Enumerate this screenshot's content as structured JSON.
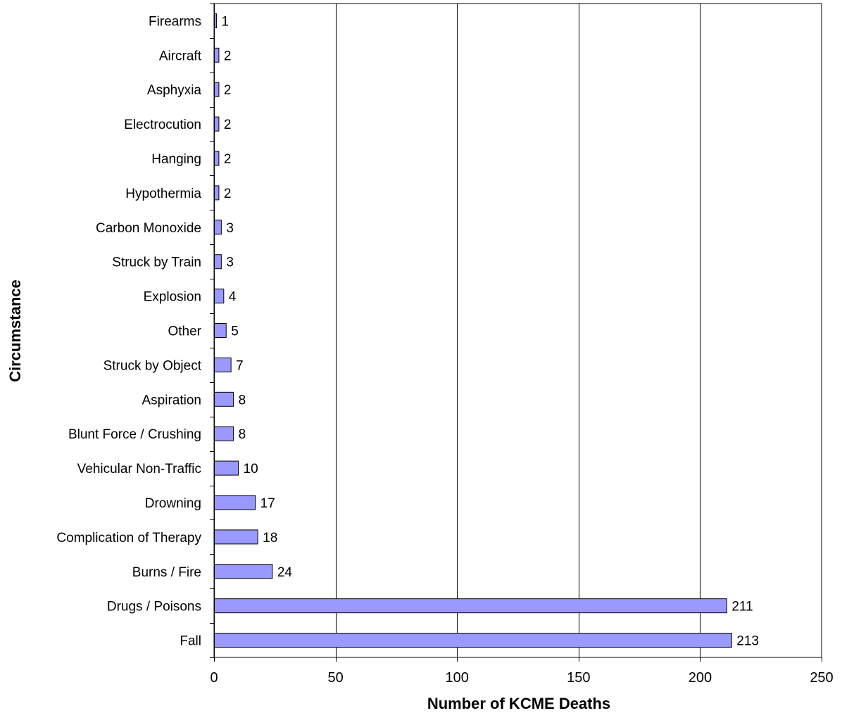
{
  "chart_data": {
    "type": "bar",
    "orientation": "horizontal",
    "title": "",
    "xlabel": "Number of KCME Deaths",
    "ylabel": "Circumstance",
    "xlim": [
      0,
      250
    ],
    "xticks": [
      0,
      50,
      100,
      150,
      200,
      250
    ],
    "grid": "vertical-major",
    "legend": "none",
    "bar_color": "#9999ff",
    "bar_border_color": "#000000",
    "categories": [
      "Firearms",
      "Aircraft",
      "Asphyxia",
      "Electrocution",
      "Hanging",
      "Hypothermia",
      "Carbon Monoxide",
      "Struck by Train",
      "Explosion",
      "Other",
      "Struck by Object",
      "Aspiration",
      "Blunt Force / Crushing",
      "Vehicular Non-Traffic",
      "Drowning",
      "Complication of Therapy",
      "Burns / Fire",
      "Drugs / Poisons",
      "Fall"
    ],
    "values": [
      1,
      2,
      2,
      2,
      2,
      2,
      3,
      3,
      4,
      5,
      7,
      8,
      8,
      10,
      17,
      18,
      24,
      211,
      213
    ]
  }
}
